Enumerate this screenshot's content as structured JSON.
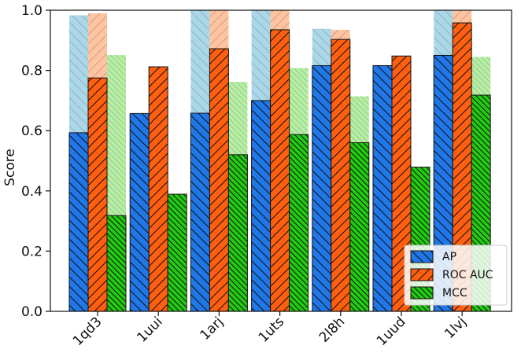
{
  "chart_data": {
    "type": "bar",
    "title": "",
    "xlabel": "",
    "ylabel": "Score",
    "ylim": [
      0,
      1.0
    ],
    "yticks": [
      "0.0",
      "0.2",
      "0.4",
      "0.6",
      "0.8",
      "1.0"
    ],
    "categories": [
      "1qd3",
      "1uui",
      "1arj",
      "1uts",
      "2l8h",
      "1uud",
      "1lvj"
    ],
    "legend_position": "lower-right",
    "grid": false,
    "series": [
      {
        "name": "AP",
        "color": "#1f77e8",
        "light_color": "#a8d8ea",
        "hatch": "backslash",
        "values": [
          0.593,
          0.657,
          0.658,
          0.7,
          0.816,
          0.816,
          0.85
        ],
        "upper_values": [
          0.983,
          0.657,
          1.0,
          1.0,
          0.938,
          0.816,
          1.0
        ]
      },
      {
        "name": "ROC AUC",
        "color": "#ff5f0e",
        "light_color": "#ffc49e",
        "hatch": "slash",
        "values": [
          0.775,
          0.812,
          0.872,
          0.935,
          0.903,
          0.848,
          0.958
        ],
        "upper_values": [
          0.99,
          0.812,
          1.0,
          1.0,
          0.935,
          0.848,
          1.0
        ]
      },
      {
        "name": "MCC",
        "color": "#22cc11",
        "light_color": "#b5f0a0",
        "hatch": "dense-backslash",
        "values": [
          0.318,
          0.389,
          0.52,
          0.587,
          0.56,
          0.479,
          0.718
        ],
        "upper_values": [
          0.851,
          0.389,
          0.762,
          0.808,
          0.714,
          0.479,
          0.845
        ]
      }
    ]
  }
}
